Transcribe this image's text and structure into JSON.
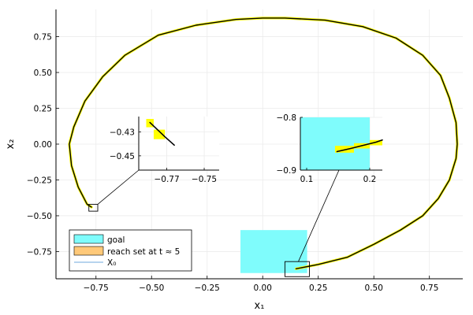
{
  "chart_data": {
    "type": "line",
    "xlabel": "x₁",
    "ylabel": "x₂",
    "xlim": [
      -0.93,
      0.9
    ],
    "ylim": [
      -0.94,
      0.94
    ],
    "xticks": [
      {
        "v": -0.75,
        "label": "−0.75"
      },
      {
        "v": -0.5,
        "label": "−0.50"
      },
      {
        "v": -0.25,
        "label": "−0.25"
      },
      {
        "v": 0.0,
        "label": "0.00"
      },
      {
        "v": 0.25,
        "label": "0.25"
      },
      {
        "v": 0.5,
        "label": "0.50"
      },
      {
        "v": 0.75,
        "label": "0.75"
      }
    ],
    "yticks": [
      {
        "v": -0.75,
        "label": "−0.75"
      },
      {
        "v": -0.5,
        "label": "−0.50"
      },
      {
        "v": -0.25,
        "label": "−0.25"
      },
      {
        "v": 0.0,
        "label": "0.00"
      },
      {
        "v": 0.25,
        "label": "0.25"
      },
      {
        "v": 0.5,
        "label": "0.50"
      },
      {
        "v": 0.75,
        "label": "0.75"
      }
    ],
    "grid": true,
    "goal_box": {
      "x": [
        -0.1,
        0.2
      ],
      "y": [
        -0.9,
        -0.6
      ],
      "color": "#7ffcfc"
    },
    "reach_set_color": "#ffff00",
    "trajectory_color": "#000000",
    "trajectory": [
      [
        0.15,
        -0.87
      ],
      [
        0.25,
        -0.84
      ],
      [
        0.38,
        -0.79
      ],
      [
        0.5,
        -0.7
      ],
      [
        0.62,
        -0.6
      ],
      [
        0.72,
        -0.5
      ],
      [
        0.79,
        -0.38
      ],
      [
        0.84,
        -0.25
      ],
      [
        0.87,
        -0.1
      ],
      [
        0.875,
        0.0
      ],
      [
        0.87,
        0.15
      ],
      [
        0.84,
        0.32
      ],
      [
        0.8,
        0.48
      ],
      [
        0.72,
        0.62
      ],
      [
        0.6,
        0.74
      ],
      [
        0.45,
        0.82
      ],
      [
        0.28,
        0.865
      ],
      [
        0.1,
        0.88
      ],
      [
        0.0,
        0.88
      ],
      [
        -0.12,
        0.87
      ],
      [
        -0.3,
        0.83
      ],
      [
        -0.47,
        0.76
      ],
      [
        -0.62,
        0.62
      ],
      [
        -0.72,
        0.47
      ],
      [
        -0.8,
        0.3
      ],
      [
        -0.85,
        0.12
      ],
      [
        -0.87,
        0.0
      ],
      [
        -0.86,
        -0.15
      ],
      [
        -0.83,
        -0.3
      ],
      [
        -0.79,
        -0.42
      ],
      [
        -0.77,
        -0.44
      ]
    ],
    "markers": [
      {
        "x": [
          -0.782,
          -0.742
        ],
        "y": [
          -0.468,
          -0.42
        ]
      },
      {
        "x": [
          0.1,
          0.21
        ],
        "y": [
          -0.925,
          -0.82
        ]
      }
    ],
    "legend": {
      "placement": "bottom-left",
      "entries": [
        {
          "label": "goal",
          "color": "#7ffcfc"
        },
        {
          "label": "reach set at t ≈ 5",
          "color": "#ffc979"
        },
        {
          "label": "X₀",
          "color": "#6fa8dc"
        }
      ]
    },
    "insets": [
      {
        "xlim": [
          -0.785,
          -0.742
        ],
        "ylim": [
          -0.462,
          -0.417
        ],
        "xticks": [
          {
            "v": -0.77,
            "label": "−0.77"
          },
          {
            "v": -0.75,
            "label": "−0.75"
          }
        ],
        "yticks": [
          {
            "v": -0.43,
            "label": "−0.43"
          },
          {
            "v": -0.45,
            "label": "−0.45"
          }
        ],
        "reach_set": [
          [
            -0.781,
            -0.419,
            -0.777,
            -0.426
          ],
          [
            -0.777,
            -0.428,
            -0.771,
            -0.436
          ]
        ],
        "line": [
          [
            -0.779,
            -0.422
          ],
          [
            -0.771,
            -0.434
          ],
          [
            -0.766,
            -0.441
          ]
        ]
      },
      {
        "xlim": [
          0.09,
          0.22
        ],
        "ylim": [
          -0.9,
          -0.8
        ],
        "xticks": [
          {
            "v": 0.1,
            "label": "0.1"
          },
          {
            "v": 0.2,
            "label": "0.2"
          }
        ],
        "yticks": [
          {
            "v": -0.8,
            "label": "−0.8"
          },
          {
            "v": -0.9,
            "label": "−0.9"
          }
        ],
        "goal_box": {
          "x": [
            0.09,
            0.2
          ],
          "y": [
            -0.9,
            -0.8
          ]
        },
        "reach_set": [
          [
            0.145,
            -0.867,
            0.175,
            -0.854
          ],
          [
            0.175,
            -0.859,
            0.2,
            -0.849
          ],
          [
            0.2,
            -0.853,
            0.22,
            -0.843
          ]
        ],
        "line": [
          [
            0.148,
            -0.865
          ],
          [
            0.17,
            -0.859
          ],
          [
            0.19,
            -0.853
          ],
          [
            0.21,
            -0.847
          ],
          [
            0.22,
            -0.843
          ]
        ]
      }
    ]
  }
}
